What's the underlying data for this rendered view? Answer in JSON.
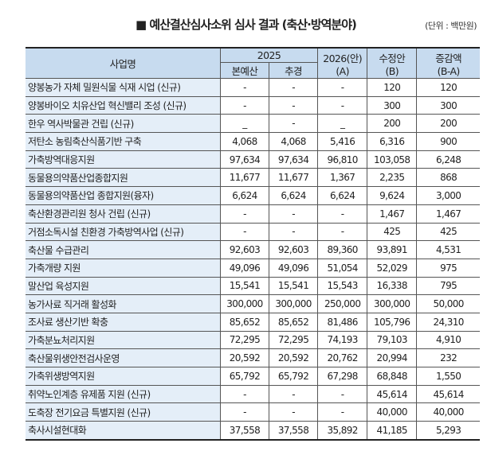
{
  "title": "■ 예산결산심사소위 심사 결과 (축산·방역분야)",
  "unit": "(단위 : 백만원)",
  "headers": {
    "name": "사업명",
    "year2025": "2025",
    "budget": "본예산",
    "supplementary": "추경",
    "y2026": "2026(안)",
    "y2026_sub": "(A)",
    "revised": "수정안",
    "revised_sub": "(B)",
    "diff": "증감액",
    "diff_sub": "(B-A)"
  },
  "rows": [
    [
      "양봉농가 자체 밀원식물 식재 시업 (신규)",
      "-",
      "-",
      "-",
      "120",
      "120"
    ],
    [
      "양봉바이오 치유산업 혁신밸리 조성 (신규)",
      "-",
      "-",
      "-",
      "300",
      "300"
    ],
    [
      "한우 역사박물관 건립 (신규)",
      "_",
      "-",
      "_",
      "200",
      "200"
    ],
    [
      "저탄소 농림축산식품기반 구축",
      "4,068",
      "4,068",
      "5,416",
      "6,316",
      "900"
    ],
    [
      "가축방역대응지원",
      "97,634",
      "97,634",
      "96,810",
      "103,058",
      "6,248"
    ],
    [
      "동물용의약품산업종합지원",
      "11,677",
      "11,677",
      "1,367",
      "2,235",
      "868"
    ],
    [
      "동물용의약품산업 종합지원(융자)",
      "6,624",
      "6,624",
      "6,624",
      "9,624",
      "3,000"
    ],
    [
      "축산환경관리원 청사 건립 (신규)",
      "-",
      "-",
      "-",
      "1,467",
      "1,467"
    ],
    [
      "거점소독시설 친환경 가축방역사업 (신규)",
      "-",
      "-",
      "-",
      "425",
      "425"
    ],
    [
      "축산물 수급관리",
      "92,603",
      "92,603",
      "89,360",
      "93,891",
      "4,531"
    ],
    [
      "가축개량 지원",
      "49,096",
      "49,096",
      "51,054",
      "52,029",
      "975"
    ],
    [
      "말산업 육성지원",
      "15,541",
      "15,541",
      "15,543",
      "16,338",
      "795"
    ],
    [
      "농가사료 직거래 활성화",
      "300,000",
      "300,000",
      "250,000",
      "300,000",
      "50,000"
    ],
    [
      "조사료 생산기반 확충",
      "85,652",
      "85,652",
      "81,486",
      "105,796",
      "24,310"
    ],
    [
      "가축분뇨처리지원",
      "72,295",
      "72,295",
      "74,193",
      "79,103",
      "4,910"
    ],
    [
      "축산물위생안전검사운영",
      "20,592",
      "20,592",
      "20,762",
      "20,994",
      "232"
    ],
    [
      "가축위생방역지원",
      "65,792",
      "65,792",
      "67,298",
      "68,848",
      "1,550"
    ],
    [
      "취약노인계층 유제품 지원 (신규)",
      "-",
      "-",
      "-",
      "45,614",
      "45,614"
    ],
    [
      "도축장 전기요금 특별지원 (신규)",
      "-",
      "-",
      "-",
      "40,000",
      "40,000"
    ],
    [
      "축사시설현대화",
      "37,558",
      "37,558",
      "35,892",
      "41,185",
      "5,293"
    ]
  ],
  "colors": {
    "header_bg": "#c7dbef",
    "name_bg": "#e4eef8"
  }
}
